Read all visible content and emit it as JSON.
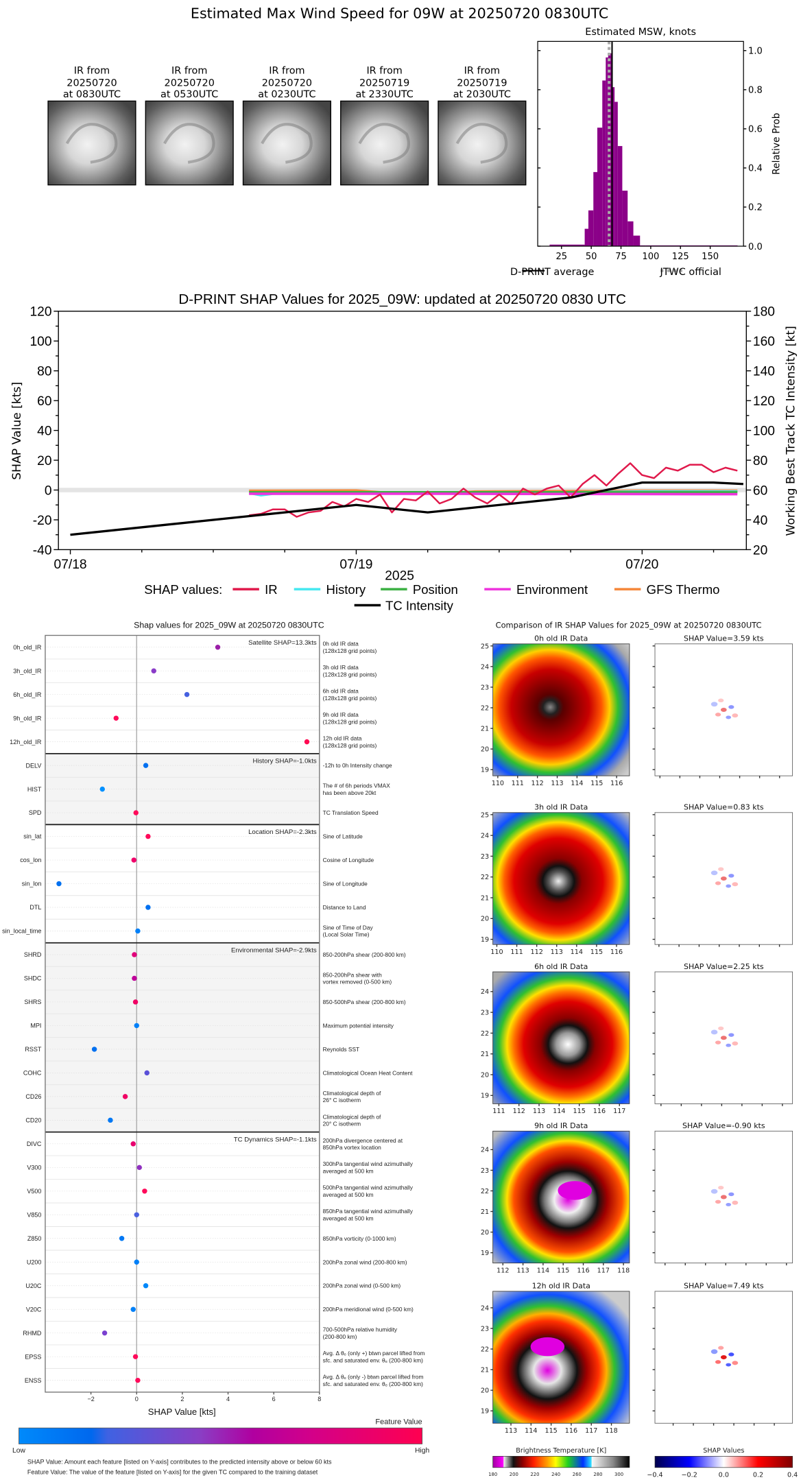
{
  "header": {
    "title": "Estimated Max Wind Speed for 09W at 20250720 0830UTC"
  },
  "ir_thumbnails": [
    {
      "line1": "IR from",
      "date": "20250720",
      "time": "at 0830UTC"
    },
    {
      "line1": "IR from",
      "date": "20250720",
      "time": "at 0530UTC"
    },
    {
      "line1": "IR from",
      "date": "20250720",
      "time": "at 0230UTC"
    },
    {
      "line1": "IR from",
      "date": "20250719",
      "time": "at 2330UTC"
    },
    {
      "line1": "IR from",
      "date": "20250719",
      "time": "at 2030UTC"
    }
  ],
  "chart_data": [
    {
      "type": "bar",
      "title": "Estimated MSW, knots",
      "xlabel": "",
      "ylabel": "Relative Prob",
      "xlim": [
        5,
        178
      ],
      "ylim": [
        0,
        1.047
      ],
      "xticks": [
        25,
        50,
        75,
        100,
        125,
        150
      ],
      "yticks": [
        "0.0",
        "0.2",
        "0.4",
        "0.6",
        "0.8",
        "1.0"
      ],
      "bin_edges": [
        15,
        44.5,
        47.6,
        51.8,
        55.1,
        59.3,
        62.2,
        64.2,
        67.2,
        69.6,
        72.3,
        76.1,
        80.6,
        85.4,
        91,
        95.6,
        173
      ],
      "values": [
        0.008,
        0.089,
        0.183,
        0.379,
        0.606,
        0.847,
        0.965,
        0.986,
        0.813,
        0.738,
        0.512,
        0.284,
        0.127,
        0.054,
        0.004,
        0.004
      ],
      "bar_color": "#8b0088",
      "dprint_average": 67.5,
      "jtwc_official": 65,
      "legend": {
        "position": "bottom",
        "entries": [
          "D-PRINT average",
          "JTWC official"
        ]
      }
    },
    {
      "type": "line",
      "title": "D-PRINT SHAP Values for 2025_09W: updated at 20250720 0830 UTC",
      "xlabel": "2025",
      "ylabel": "SHAP Value [kts]",
      "ylabel_right": "Working Best Track TC Intensity [kt]",
      "xlim": [
        "2025-07-17 23:00",
        "2025-07-20 08:45"
      ],
      "ylim": [
        -40,
        120
      ],
      "ylim_right": [
        20,
        180
      ],
      "xticks": [
        {
          "label": "07/18",
          "date": "2025-07-18 00:00"
        },
        {
          "label": "07/19",
          "date": "2025-07-19 00:00"
        },
        {
          "label": "07/20",
          "date": "2025-07-20 00:00"
        }
      ],
      "yticks": [
        -40,
        -20,
        0,
        20,
        40,
        60,
        80,
        100,
        120
      ],
      "yticks_right": [
        20,
        40,
        60,
        80,
        100,
        120,
        140,
        160,
        180
      ],
      "legend": {
        "position": "bottom",
        "prefix": "SHAP values:"
      },
      "series": [
        {
          "name": "IR",
          "color": "#e0194b",
          "points": [
            [
              "2025-07-18 15:00",
              -17
            ],
            [
              "2025-07-18 16:00",
              -16
            ],
            [
              "2025-07-18 17:00",
              -13
            ],
            [
              "2025-07-18 18:00",
              -13
            ],
            [
              "2025-07-18 19:00",
              -18
            ],
            [
              "2025-07-18 20:00",
              -15
            ],
            [
              "2025-07-18 21:00",
              -14
            ],
            [
              "2025-07-18 22:00",
              -8
            ],
            [
              "2025-07-18 23:00",
              -11
            ],
            [
              "2025-07-19 00:00",
              -6
            ],
            [
              "2025-07-19 01:00",
              -8
            ],
            [
              "2025-07-19 02:00",
              -3
            ],
            [
              "2025-07-19 03:00",
              -15
            ],
            [
              "2025-07-19 04:00",
              -6
            ],
            [
              "2025-07-19 05:00",
              -7
            ],
            [
              "2025-07-19 06:00",
              -1
            ],
            [
              "2025-07-19 07:00",
              -9
            ],
            [
              "2025-07-19 08:00",
              -6
            ],
            [
              "2025-07-19 09:00",
              1
            ],
            [
              "2025-07-19 10:00",
              -5
            ],
            [
              "2025-07-19 11:00",
              -9
            ],
            [
              "2025-07-19 12:00",
              -3
            ],
            [
              "2025-07-19 13:00",
              -9
            ],
            [
              "2025-07-19 14:00",
              1
            ],
            [
              "2025-07-19 15:00",
              -3
            ],
            [
              "2025-07-19 16:00",
              1
            ],
            [
              "2025-07-19 17:00",
              3
            ],
            [
              "2025-07-19 18:00",
              -5
            ],
            [
              "2025-07-19 19:00",
              4
            ],
            [
              "2025-07-19 20:00",
              10
            ],
            [
              "2025-07-19 21:00",
              3
            ],
            [
              "2025-07-19 22:00",
              11
            ],
            [
              "2025-07-19 23:00",
              18
            ],
            [
              "2025-07-20 00:00",
              10
            ],
            [
              "2025-07-20 01:00",
              8
            ],
            [
              "2025-07-20 02:00",
              15
            ],
            [
              "2025-07-20 03:00",
              13
            ],
            [
              "2025-07-20 04:00",
              17
            ],
            [
              "2025-07-20 05:00",
              17
            ],
            [
              "2025-07-20 06:00",
              12
            ],
            [
              "2025-07-20 07:00",
              15
            ],
            [
              "2025-07-20 08:00",
              13
            ]
          ]
        },
        {
          "name": "History",
          "color": "#45e8f0",
          "points": [
            [
              "2025-07-18 15:00",
              -2
            ],
            [
              "2025-07-18 16:00",
              -3.5
            ],
            [
              "2025-07-18 17:00",
              -2.5
            ],
            [
              "2025-07-19 00:00",
              -2
            ],
            [
              "2025-07-19 12:00",
              -2
            ],
            [
              "2025-07-20 00:00",
              -1
            ],
            [
              "2025-07-20 08:00",
              -1
            ]
          ]
        },
        {
          "name": "Position",
          "color": "#3cb043",
          "points": [
            [
              "2025-07-18 15:00",
              -1.5
            ],
            [
              "2025-07-19 06:00",
              -1.5
            ],
            [
              "2025-07-20 08:00",
              -1.5
            ]
          ]
        },
        {
          "name": "Environment",
          "color": "#ee33dd",
          "points": [
            [
              "2025-07-18 15:00",
              -2.5
            ],
            [
              "2025-07-19 06:00",
              -2.5
            ],
            [
              "2025-07-20 08:00",
              -2.8
            ]
          ]
        },
        {
          "name": "GFS Thermo",
          "color": "#f5873a",
          "points": [
            [
              "2025-07-18 15:00",
              -0.5
            ],
            [
              "2025-07-19 00:00",
              -0.3
            ],
            [
              "2025-07-19 02:00",
              -1.5
            ],
            [
              "2025-07-19 09:00",
              -1.5
            ],
            [
              "2025-07-19 10:00",
              -1
            ],
            [
              "2025-07-20 00:00",
              -0.5
            ],
            [
              "2025-07-20 08:00",
              -0.5
            ]
          ]
        }
      ],
      "intensity": {
        "name": "TC Intensity",
        "color": "#000000",
        "axis": "right",
        "points": [
          [
            "2025-07-18 00:00",
            30
          ],
          [
            "2025-07-19 00:00",
            50
          ],
          [
            "2025-07-19 06:00",
            45
          ],
          [
            "2025-07-19 18:00",
            55
          ],
          [
            "2025-07-20 00:00",
            65
          ],
          [
            "2025-07-20 06:00",
            65
          ],
          [
            "2025-07-20 08:30",
            64
          ]
        ]
      }
    },
    {
      "type": "scatter",
      "title": "Shap values for 2025_09W at 20250720 0830UTC",
      "xlabel": "SHAP Value [kts]",
      "xlim": [
        -4,
        8
      ],
      "xticks": [
        "−2",
        "0",
        "2",
        "4",
        "6",
        "8"
      ],
      "xtick_values": [
        -2,
        0,
        2,
        4,
        6,
        8
      ],
      "groups": [
        {
          "label": "Satellite SHAP=13.3kts",
          "start": 0,
          "count": 5,
          "shaded": false
        },
        {
          "label": "History SHAP=-1.0kts",
          "start": 5,
          "count": 3,
          "shaded": true
        },
        {
          "label": "Location SHAP=-2.3kts",
          "start": 8,
          "count": 5,
          "shaded": false
        },
        {
          "label": "Environmental SHAP=-2.9kts",
          "start": 13,
          "count": 8,
          "shaded": true
        },
        {
          "label": "TC Dynamics SHAP=-1.1kts",
          "start": 21,
          "count": 11,
          "shaded": false
        }
      ],
      "features": [
        {
          "name": "0h_old_IR",
          "value": 3.55,
          "color": "#9b1fa8",
          "description": [
            "0h old IR data",
            "(128x128 grid points)"
          ]
        },
        {
          "name": "3h_old_IR",
          "value": 0.75,
          "color": "#8a3cc8",
          "description": [
            "3h old IR data",
            "(128x128 grid points)"
          ]
        },
        {
          "name": "6h_old_IR",
          "value": 2.2,
          "color": "#4560e0",
          "description": [
            "6h old IR data",
            "(128x128 grid points)"
          ]
        },
        {
          "name": "9h_old_IR",
          "value": -0.9,
          "color": "#ff0a5a",
          "description": [
            "9h old IR data",
            "(128x128 grid points)"
          ]
        },
        {
          "name": "12h_old_IR",
          "value": 7.45,
          "color": "#ff0a52",
          "description": [
            "12h old IR data",
            "(128x128 grid points)"
          ]
        },
        {
          "name": "DELV",
          "value": 0.4,
          "color": "#0070f0",
          "description": [
            "-12h to 0h Intensity change"
          ]
        },
        {
          "name": "HIST",
          "value": -1.5,
          "color": "#0090ff",
          "description": [
            "The # of 6h periods VMAX",
            "has been above 20kt"
          ]
        },
        {
          "name": "SPD",
          "value": -0.03,
          "color": "#ff0a5a",
          "description": [
            "TC Translation Speed"
          ]
        },
        {
          "name": "sin_lat",
          "value": 0.5,
          "color": "#ff0a5a",
          "description": [
            "Sine of Latitude"
          ]
        },
        {
          "name": "cos_lon",
          "value": -0.12,
          "color": "#f0006a",
          "description": [
            "Cosine of Longitude"
          ]
        },
        {
          "name": "sin_lon",
          "value": -3.4,
          "color": "#0070f0",
          "description": [
            "Sine of Longitude"
          ]
        },
        {
          "name": "DTL",
          "value": 0.5,
          "color": "#0070f0",
          "description": [
            "Distance to Land"
          ]
        },
        {
          "name": "sin_local_time",
          "value": 0.05,
          "color": "#0080f8",
          "description": [
            "Sine of Time of Day",
            "(Local Solar Time)"
          ]
        },
        {
          "name": "SHRD",
          "value": -0.1,
          "color": "#e0007a",
          "description": [
            "850-200hPa shear (200-800 km)"
          ]
        },
        {
          "name": "SHDC",
          "value": -0.1,
          "color": "#c0009a",
          "description": [
            "850-200hPa shear with",
            "vortex removed (0-500 km)"
          ]
        },
        {
          "name": "SHRS",
          "value": -0.05,
          "color": "#f00064",
          "description": [
            "850-500hPa shear (200-800 km)"
          ]
        },
        {
          "name": "MPI",
          "value": 0.0,
          "color": "#0080f8",
          "description": [
            "Maximum potential intensity"
          ]
        },
        {
          "name": "RSST",
          "value": -1.85,
          "color": "#0070f0",
          "description": [
            "Reynolds SST"
          ]
        },
        {
          "name": "COHC",
          "value": 0.45,
          "color": "#5a50d8",
          "description": [
            "Climatological Ocean Heat Content"
          ]
        },
        {
          "name": "CD26",
          "value": -0.5,
          "color": "#f00064",
          "description": [
            "Climatological depth of",
            "26° C isotherm"
          ]
        },
        {
          "name": "CD20",
          "value": -1.15,
          "color": "#0078f4",
          "description": [
            "Climatological depth of",
            "20° C isotherm"
          ]
        },
        {
          "name": "DIVC",
          "value": -0.15,
          "color": "#e8006e",
          "description": [
            "200hPa divergence centered at",
            "850hPa vortex location"
          ]
        },
        {
          "name": "V300",
          "value": 0.12,
          "color": "#9030c0",
          "description": [
            "300hPa tangential wind azimuthally",
            "averaged at 500 km"
          ]
        },
        {
          "name": "V500",
          "value": 0.35,
          "color": "#ff0a5a",
          "description": [
            "500hPa tangential wind azimuthally",
            "averaged at 500 km"
          ]
        },
        {
          "name": "V850",
          "value": 0.0,
          "color": "#4a60e0",
          "description": [
            "850hPa tangential wind azimuthally",
            "averaged at 500 km"
          ]
        },
        {
          "name": "Z850",
          "value": -0.65,
          "color": "#0078f4",
          "description": [
            "850hPa vorticity (0-1000 km)"
          ]
        },
        {
          "name": "U200",
          "value": 0.0,
          "color": "#0080f8",
          "description": [
            "200hPa zonal wind (200-800 km)"
          ]
        },
        {
          "name": "U20C",
          "value": 0.4,
          "color": "#0088fa",
          "description": [
            "200hPa zonal wind (0-500 km)"
          ]
        },
        {
          "name": "V20C",
          "value": -0.15,
          "color": "#0080f8",
          "description": [
            "200hPa meridional wind (0-500 km)"
          ]
        },
        {
          "name": "RHMD",
          "value": -1.4,
          "color": "#7a40d0",
          "description": [
            "700-500hPa relative humidity",
            "(200-800 km)"
          ]
        },
        {
          "name": "EPSS",
          "value": -0.05,
          "color": "#ff0a5a",
          "description": [
            "Avg. Δ θₑ (only +) btwn parcel lifted from",
            "sfc. and saturated env. θₑ (200-800 km)"
          ]
        },
        {
          "name": "ENSS",
          "value": 0.05,
          "color": "#ff0a5a",
          "description": [
            "Avg. Δ θₑ (only -) btwn parcel lifted from",
            "sfc. and saturated env. θₑ (200-800 km)"
          ]
        }
      ],
      "colorbar": {
        "title": "Feature Value",
        "low": "Low",
        "high": "High"
      },
      "notes": [
        "SHAP Value: Amount each feature [listed on Y-axis] contributes to the predicted intensity above or below 60 kts",
        "Feature Value: The value of the feature [listed on Y-axis] for the given TC compared to the training dataset"
      ]
    }
  ],
  "ir_comparison": {
    "title": "Comparison of IR SHAP Values for 2025_09W at 20250720 0830UTC",
    "rows": [
      {
        "title": "0h old IR Data",
        "shap_title": "SHAP Value=3.59 kts",
        "xlim": [
          109.75,
          116.65
        ],
        "ylim": [
          18.7,
          25.1
        ],
        "xticks": [
          110,
          111,
          112,
          113,
          114,
          115,
          116
        ],
        "yticks": [
          19,
          20,
          21,
          22,
          23,
          24,
          25
        ]
      },
      {
        "title": "3h old IR Data",
        "shap_title": "SHAP Value=0.83 kts",
        "xlim": [
          109.8,
          116.65
        ],
        "ylim": [
          18.75,
          25.1
        ],
        "xticks": [
          110,
          111,
          112,
          113,
          114,
          115,
          116
        ],
        "yticks": [
          19,
          20,
          21,
          22,
          23,
          24,
          25
        ]
      },
      {
        "title": "6h old IR Data",
        "shap_title": "SHAP Value=2.25 kts",
        "xlim": [
          110.7,
          117.5
        ],
        "ylim": [
          18.6,
          24.95
        ],
        "xticks": [
          111,
          112,
          113,
          114,
          115,
          116,
          117
        ],
        "yticks": [
          19,
          20,
          21,
          22,
          23,
          24
        ]
      },
      {
        "title": "9h old IR Data",
        "shap_title": "SHAP Value=-0.90 kts",
        "xlim": [
          111.5,
          118.3
        ],
        "ylim": [
          18.5,
          24.9
        ],
        "xticks": [
          112,
          113,
          114,
          115,
          116,
          117,
          118
        ],
        "yticks": [
          19,
          20,
          21,
          22,
          23,
          24
        ]
      },
      {
        "title": "12h old IR Data",
        "shap_title": "SHAP Value=7.49 kts",
        "xlim": [
          112.1,
          118.9
        ],
        "ylim": [
          18.4,
          24.8
        ],
        "xticks": [
          113,
          114,
          115,
          116,
          117,
          118
        ],
        "yticks": [
          19,
          20,
          21,
          22,
          23,
          24
        ]
      }
    ],
    "ir_colorbar": {
      "title": "Brightness Temperature [K]",
      "range": [
        180,
        310
      ],
      "ticks": [
        180,
        200,
        220,
        240,
        260,
        280,
        300
      ]
    },
    "shap_colorbar": {
      "title": "SHAP Values",
      "range": [
        -0.4,
        0.4
      ],
      "ticks": [
        "−0.4",
        "−0.2",
        "0.0",
        "0.2",
        "0.4"
      ]
    }
  }
}
